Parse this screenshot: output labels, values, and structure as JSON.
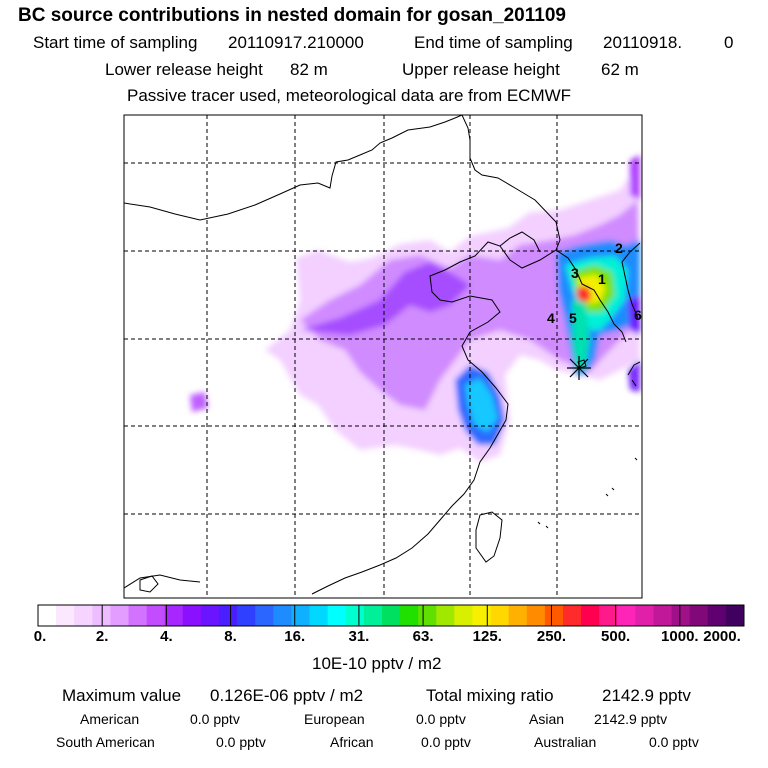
{
  "header": {
    "title": "BC  source contributions in nested domain for gosan_201109",
    "start_label": "Start time of sampling",
    "start_value": "20110917.210000",
    "end_label": "End time of sampling",
    "end_value": "20110918.",
    "end_extra": "0",
    "lower_label": "Lower release height",
    "lower_value": "82 m",
    "upper_label": "Upper release height",
    "upper_value": "62 m",
    "note": "Passive tracer used, meteorological data are from ECMWF"
  },
  "chart_data": {
    "type": "heatmap",
    "title": "BC  source contributions in nested domain for gosan_201109",
    "map_region": "East Asia nested domain",
    "receptor_marker": "gosan",
    "region_labels": [
      "1",
      "2",
      "3",
      "4",
      "5",
      "6"
    ],
    "colorbar": {
      "ticks": [
        "0.",
        "2.",
        "4.",
        "8.",
        "16.",
        "31.",
        "63.",
        "125.",
        "250.",
        "500.",
        "1000.",
        "2000."
      ],
      "colors": [
        "#ffffff",
        "#fbe8ff",
        "#f6d4ff",
        "#eebdff",
        "#e39cff",
        "#d372ff",
        "#c44cff",
        "#a826ff",
        "#8a10ff",
        "#6a14ff",
        "#4a1eff",
        "#2f40ff",
        "#2a66ff",
        "#1e8cff",
        "#0fb0ff",
        "#00d8ff",
        "#00ffff",
        "#00ffd0",
        "#00f09a",
        "#00e060",
        "#20e000",
        "#60e000",
        "#a0e800",
        "#d8f000",
        "#f8f000",
        "#ffd800",
        "#ffb000",
        "#ff8c00",
        "#ff5a00",
        "#ff2a2a",
        "#ff0050",
        "#ff1a8c",
        "#ff24b8",
        "#e020a8",
        "#c01898",
        "#a01088",
        "#800878",
        "#600070",
        "#400060"
      ],
      "unit": "10E-10 pptv / m2"
    }
  },
  "stats": {
    "max_label": "Maximum value",
    "max_value": "0.126E-06 pptv / m2",
    "total_label": "Total mixing ratio",
    "total_value": "2142.9 pptv",
    "american_label": "American",
    "american_value": "0.0 pptv",
    "european_label": "European",
    "european_value": "0.0 pptv",
    "asian_label": "Asian",
    "asian_value": "2142.9 pptv",
    "south_american_label": "South American",
    "south_american_value": "0.0 pptv",
    "african_label": "African",
    "african_value": "0.0 pptv",
    "australian_label": "Australian",
    "australian_value": "0.0 pptv"
  }
}
